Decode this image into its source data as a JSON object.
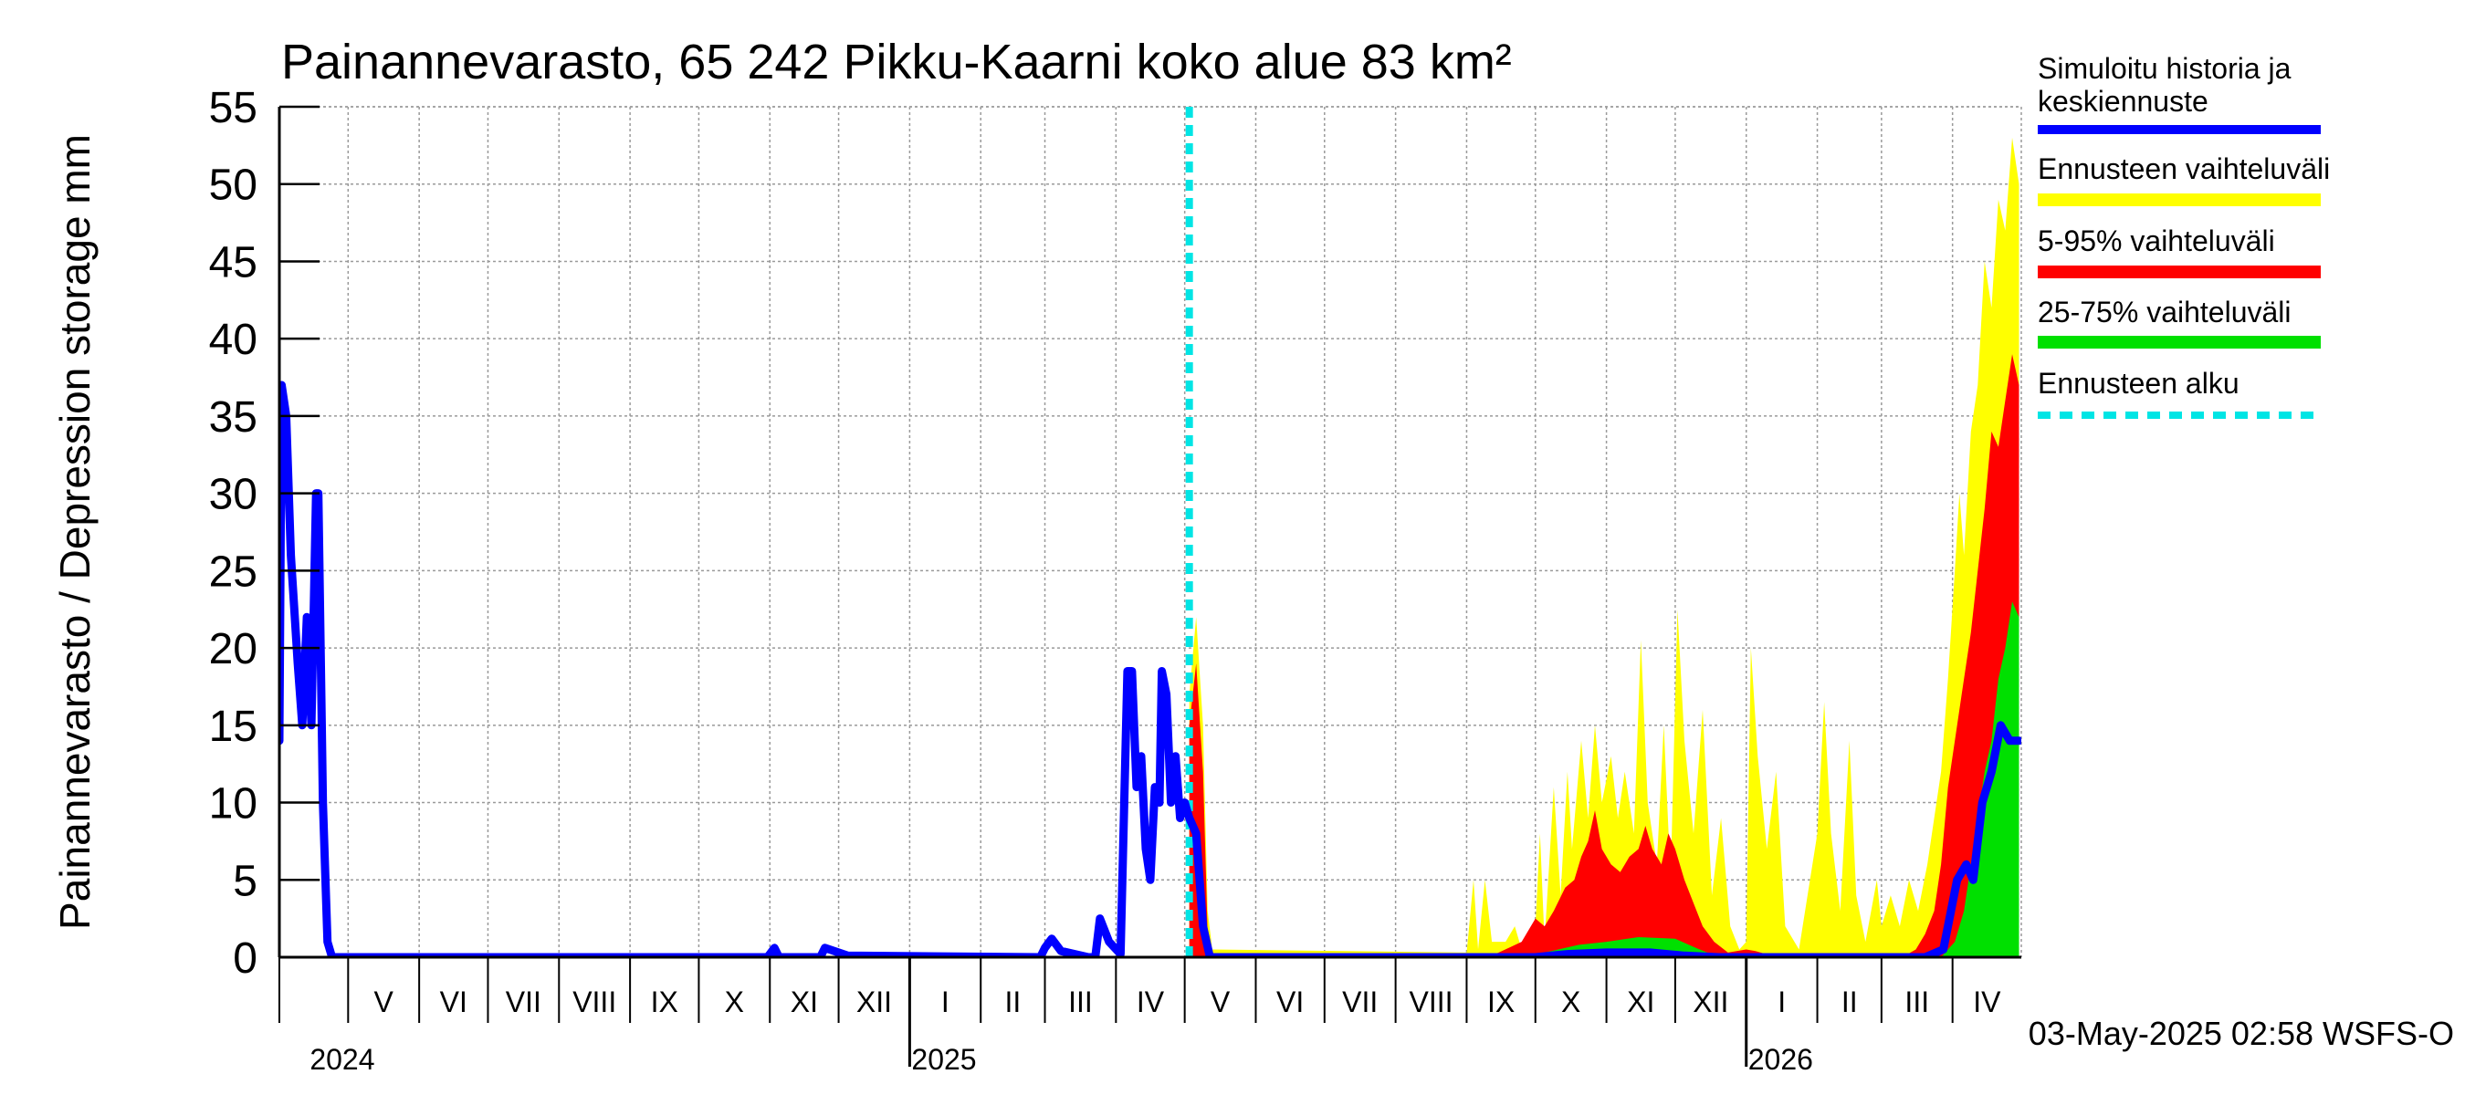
{
  "chart_data": {
    "type": "area",
    "title": "Painannevarasto, 65 242 Pikku-Kaarni koko alue 83 km²",
    "ylabel": "Painannevarasto / Depression storage    mm",
    "xlabel": "",
    "ylim": [
      0,
      55
    ],
    "xlim": [
      "2024-04-01",
      "2026-05-01"
    ],
    "grid": true,
    "yticks": [
      0,
      5,
      10,
      15,
      20,
      25,
      30,
      35,
      40,
      45,
      50,
      55
    ],
    "month_labels": [
      {
        "label": "V",
        "date": "2024-05-01"
      },
      {
        "label": "VI",
        "date": "2024-06-01"
      },
      {
        "label": "VII",
        "date": "2024-07-01"
      },
      {
        "label": "VIII",
        "date": "2024-08-01"
      },
      {
        "label": "IX",
        "date": "2024-09-01"
      },
      {
        "label": "X",
        "date": "2024-10-01"
      },
      {
        "label": "XI",
        "date": "2024-11-01"
      },
      {
        "label": "XII",
        "date": "2024-12-01"
      },
      {
        "label": "I",
        "date": "2025-01-01"
      },
      {
        "label": "II",
        "date": "2025-02-01"
      },
      {
        "label": "III",
        "date": "2025-03-01"
      },
      {
        "label": "IV",
        "date": "2025-04-01"
      },
      {
        "label": "V",
        "date": "2025-05-01"
      },
      {
        "label": "VI",
        "date": "2025-06-01"
      },
      {
        "label": "VII",
        "date": "2025-07-01"
      },
      {
        "label": "VIII",
        "date": "2025-08-01"
      },
      {
        "label": "IX",
        "date": "2025-09-01"
      },
      {
        "label": "X",
        "date": "2025-10-01"
      },
      {
        "label": "XI",
        "date": "2025-11-01"
      },
      {
        "label": "XII",
        "date": "2025-12-01"
      },
      {
        "label": "I",
        "date": "2026-01-01"
      },
      {
        "label": "II",
        "date": "2026-02-01"
      },
      {
        "label": "III",
        "date": "2026-03-01"
      },
      {
        "label": "IV",
        "date": "2026-04-01"
      }
    ],
    "year_labels": [
      {
        "label": "2024",
        "date": "2024-05-01"
      },
      {
        "label": "2025",
        "date": "2025-01-01"
      },
      {
        "label": "2026",
        "date": "2026-01-01"
      }
    ],
    "forecast_start": "2025-05-03",
    "legend": {
      "placement": "right",
      "entries": [
        {
          "label": "Simuloitu historia ja keskiennuste",
          "color": "#0000ff",
          "style": "line"
        },
        {
          "label": "Ennusteen vaihteluväli",
          "color": "#ffff00",
          "style": "band"
        },
        {
          "label": "5-95% vaihteluväli",
          "color": "#ff0000",
          "style": "band"
        },
        {
          "label": "25-75% vaihteluväli",
          "color": "#00e000",
          "style": "band"
        },
        {
          "label": "Ennusteen alku",
          "color": "#00e5e5",
          "style": "dashed"
        }
      ]
    },
    "series": [
      {
        "key": "history_median",
        "color": "#0000ff",
        "points": [
          [
            "2024-04-01",
            14
          ],
          [
            "2024-04-02",
            37
          ],
          [
            "2024-04-04",
            35
          ],
          [
            "2024-04-06",
            26
          ],
          [
            "2024-04-09",
            19
          ],
          [
            "2024-04-11",
            15
          ],
          [
            "2024-04-13",
            22
          ],
          [
            "2024-04-15",
            15
          ],
          [
            "2024-04-17",
            30
          ],
          [
            "2024-04-18",
            30
          ],
          [
            "2024-04-20",
            10
          ],
          [
            "2024-04-22",
            1
          ],
          [
            "2024-04-24",
            0
          ],
          [
            "2024-10-31",
            0
          ],
          [
            "2024-11-03",
            0.6
          ],
          [
            "2024-11-05",
            0
          ],
          [
            "2024-11-23",
            0
          ],
          [
            "2024-11-25",
            0.6
          ],
          [
            "2024-12-05",
            0.1
          ],
          [
            "2025-02-27",
            0
          ],
          [
            "2025-03-01",
            0.6
          ],
          [
            "2025-03-04",
            1.2
          ],
          [
            "2025-03-08",
            0.4
          ],
          [
            "2025-03-20",
            0
          ],
          [
            "2025-03-23",
            0
          ],
          [
            "2025-03-25",
            2.5
          ],
          [
            "2025-03-29",
            1
          ],
          [
            "2025-04-03",
            0.2
          ],
          [
            "2025-04-06",
            18.5
          ],
          [
            "2025-04-08",
            18.5
          ],
          [
            "2025-04-10",
            11
          ],
          [
            "2025-04-12",
            13
          ],
          [
            "2025-04-14",
            7
          ],
          [
            "2025-04-16",
            5
          ],
          [
            "2025-04-18",
            11
          ],
          [
            "2025-04-20",
            10
          ],
          [
            "2025-04-21",
            18.5
          ],
          [
            "2025-04-23",
            17
          ],
          [
            "2025-04-25",
            10
          ],
          [
            "2025-04-27",
            13
          ],
          [
            "2025-04-29",
            9
          ],
          [
            "2025-05-01",
            10
          ],
          [
            "2025-05-03",
            9
          ],
          [
            "2025-05-06",
            8
          ],
          [
            "2025-05-09",
            2
          ],
          [
            "2025-05-12",
            0
          ],
          [
            "2025-10-01",
            0
          ],
          [
            "2025-10-15",
            0.2
          ],
          [
            "2025-11-01",
            0.3
          ],
          [
            "2025-11-20",
            0.3
          ],
          [
            "2025-12-05",
            0.1
          ],
          [
            "2025-12-20",
            0
          ],
          [
            "2026-03-20",
            0
          ],
          [
            "2026-03-28",
            0.5
          ],
          [
            "2026-04-03",
            5
          ],
          [
            "2026-04-07",
            6
          ],
          [
            "2026-04-10",
            5
          ],
          [
            "2026-04-14",
            10
          ],
          [
            "2026-04-18",
            12
          ],
          [
            "2026-04-22",
            15
          ],
          [
            "2026-04-26",
            14
          ],
          [
            "2026-04-30",
            14
          ]
        ]
      },
      {
        "key": "forecast_range",
        "color": "#ffff00",
        "points": [
          [
            "2025-05-03",
            0
          ],
          [
            "2025-05-03",
            17
          ],
          [
            "2025-05-06",
            22
          ],
          [
            "2025-05-09",
            15
          ],
          [
            "2025-05-11",
            3
          ],
          [
            "2025-05-13",
            0.5
          ],
          [
            "2025-09-01",
            0.3
          ],
          [
            "2025-09-04",
            5
          ],
          [
            "2025-09-06",
            0.5
          ],
          [
            "2025-09-09",
            5
          ],
          [
            "2025-09-12",
            1
          ],
          [
            "2025-09-18",
            1
          ],
          [
            "2025-09-22",
            2
          ],
          [
            "2025-09-25",
            0.5
          ],
          [
            "2025-10-01",
            2
          ],
          [
            "2025-10-03",
            8
          ],
          [
            "2025-10-05",
            1
          ],
          [
            "2025-10-09",
            11
          ],
          [
            "2025-10-12",
            4
          ],
          [
            "2025-10-15",
            12
          ],
          [
            "2025-10-17",
            7
          ],
          [
            "2025-10-21",
            14
          ],
          [
            "2025-10-24",
            9
          ],
          [
            "2025-10-27",
            15
          ],
          [
            "2025-10-30",
            10
          ],
          [
            "2025-11-03",
            13
          ],
          [
            "2025-11-06",
            9
          ],
          [
            "2025-11-09",
            12
          ],
          [
            "2025-11-13",
            8
          ],
          [
            "2025-11-16",
            20.5
          ],
          [
            "2025-11-19",
            10
          ],
          [
            "2025-11-23",
            6
          ],
          [
            "2025-11-26",
            15
          ],
          [
            "2025-11-29",
            5
          ],
          [
            "2025-12-02",
            22.5
          ],
          [
            "2025-12-05",
            14
          ],
          [
            "2025-12-09",
            8
          ],
          [
            "2025-12-13",
            16
          ],
          [
            "2025-12-17",
            4
          ],
          [
            "2025-12-21",
            9
          ],
          [
            "2025-12-25",
            2
          ],
          [
            "2025-12-29",
            0.5
          ],
          [
            "2026-01-01",
            1
          ],
          [
            "2026-01-03",
            20
          ],
          [
            "2026-01-06",
            13
          ],
          [
            "2026-01-10",
            7
          ],
          [
            "2026-01-14",
            12
          ],
          [
            "2026-01-18",
            2
          ],
          [
            "2026-01-24",
            0.5
          ],
          [
            "2026-02-01",
            8
          ],
          [
            "2026-02-04",
            16.5
          ],
          [
            "2026-02-07",
            8
          ],
          [
            "2026-02-11",
            3
          ],
          [
            "2026-02-15",
            14
          ],
          [
            "2026-02-18",
            4
          ],
          [
            "2026-02-22",
            1
          ],
          [
            "2026-02-27",
            5
          ],
          [
            "2026-03-01",
            2
          ],
          [
            "2026-03-05",
            4
          ],
          [
            "2026-03-09",
            2
          ],
          [
            "2026-03-13",
            5
          ],
          [
            "2026-03-17",
            3
          ],
          [
            "2026-03-21",
            6
          ],
          [
            "2026-03-24",
            9
          ],
          [
            "2026-03-27",
            12
          ],
          [
            "2026-03-30",
            18
          ],
          [
            "2026-04-02",
            25
          ],
          [
            "2026-04-04",
            30
          ],
          [
            "2026-04-06",
            26
          ],
          [
            "2026-04-09",
            34
          ],
          [
            "2026-04-12",
            37
          ],
          [
            "2026-04-15",
            45
          ],
          [
            "2026-04-18",
            42
          ],
          [
            "2026-04-21",
            49
          ],
          [
            "2026-04-24",
            47
          ],
          [
            "2026-04-27",
            53
          ],
          [
            "2026-04-30",
            50
          ],
          [
            "2026-04-30",
            0
          ]
        ]
      },
      {
        "key": "p5_p95",
        "color": "#ff0000",
        "points": [
          [
            "2025-05-03",
            0
          ],
          [
            "2025-05-03",
            15
          ],
          [
            "2025-05-06",
            19
          ],
          [
            "2025-05-09",
            12
          ],
          [
            "2025-05-11",
            1.5
          ],
          [
            "2025-05-13",
            0
          ],
          [
            "2025-09-10",
            0
          ],
          [
            "2025-09-15",
            0.3
          ],
          [
            "2025-09-25",
            1
          ],
          [
            "2025-10-01",
            2.5
          ],
          [
            "2025-10-05",
            2
          ],
          [
            "2025-10-09",
            3
          ],
          [
            "2025-10-14",
            4.5
          ],
          [
            "2025-10-18",
            5
          ],
          [
            "2025-10-21",
            6.5
          ],
          [
            "2025-10-24",
            7.5
          ],
          [
            "2025-10-27",
            9.5
          ],
          [
            "2025-10-30",
            7
          ],
          [
            "2025-11-03",
            6
          ],
          [
            "2025-11-07",
            5.5
          ],
          [
            "2025-11-11",
            6.5
          ],
          [
            "2025-11-15",
            7
          ],
          [
            "2025-11-18",
            8.5
          ],
          [
            "2025-11-21",
            7
          ],
          [
            "2025-11-25",
            6
          ],
          [
            "2025-11-28",
            8
          ],
          [
            "2025-12-01",
            7
          ],
          [
            "2025-12-05",
            5
          ],
          [
            "2025-12-09",
            3.5
          ],
          [
            "2025-12-13",
            2
          ],
          [
            "2025-12-18",
            1
          ],
          [
            "2025-12-24",
            0.3
          ],
          [
            "2026-01-01",
            0.5
          ],
          [
            "2026-01-05",
            0.4
          ],
          [
            "2026-01-12",
            0.1
          ],
          [
            "2026-03-10",
            0
          ],
          [
            "2026-03-16",
            0.5
          ],
          [
            "2026-03-20",
            1.5
          ],
          [
            "2026-03-24",
            3
          ],
          [
            "2026-03-27",
            6
          ],
          [
            "2026-03-30",
            11
          ],
          [
            "2026-04-02",
            14
          ],
          [
            "2026-04-05",
            17
          ],
          [
            "2026-04-09",
            21
          ],
          [
            "2026-04-12",
            25
          ],
          [
            "2026-04-15",
            29
          ],
          [
            "2026-04-18",
            34
          ],
          [
            "2026-04-21",
            33
          ],
          [
            "2026-04-24",
            36
          ],
          [
            "2026-04-27",
            39
          ],
          [
            "2026-04-30",
            37
          ],
          [
            "2026-04-30",
            0
          ]
        ]
      },
      {
        "key": "p25_p75",
        "color": "#00e000",
        "points": [
          [
            "2025-09-25",
            0
          ],
          [
            "2025-10-05",
            0.3
          ],
          [
            "2025-10-20",
            0.8
          ],
          [
            "2025-11-01",
            1
          ],
          [
            "2025-11-15",
            1.3
          ],
          [
            "2025-12-01",
            1.2
          ],
          [
            "2025-12-10",
            0.6
          ],
          [
            "2025-12-20",
            0
          ],
          [
            "2026-03-27",
            0
          ],
          [
            "2026-04-02",
            1
          ],
          [
            "2026-04-06",
            3
          ],
          [
            "2026-04-09",
            6
          ],
          [
            "2026-04-12",
            9
          ],
          [
            "2026-04-15",
            12
          ],
          [
            "2026-04-18",
            14
          ],
          [
            "2026-04-21",
            18
          ],
          [
            "2026-04-24",
            20
          ],
          [
            "2026-04-27",
            23
          ],
          [
            "2026-04-30",
            22
          ],
          [
            "2026-04-30",
            0
          ]
        ]
      }
    ]
  },
  "footer": {
    "timestamp": "03-May-2025 02:58 WSFS-O"
  }
}
